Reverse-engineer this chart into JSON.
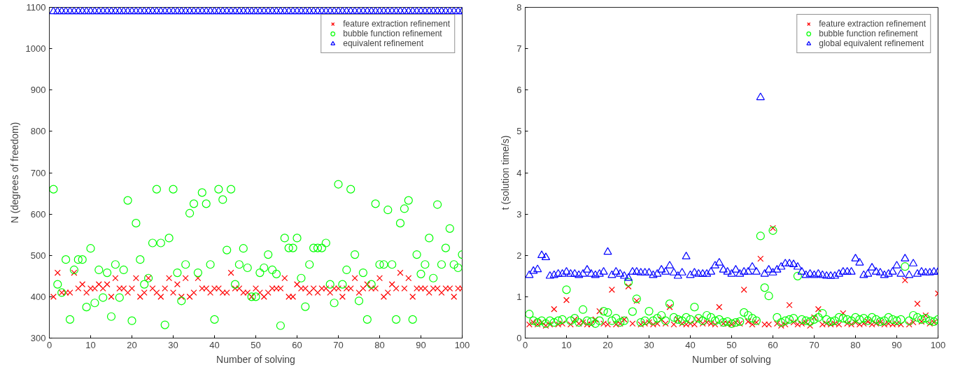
{
  "chart_data": [
    {
      "type": "scatter",
      "xlabel": "Number of solving",
      "ylabel": "N (degrees of freedom)",
      "xlim": [
        0,
        100
      ],
      "xticks": [
        0,
        10,
        20,
        30,
        40,
        50,
        60,
        70,
        80,
        90,
        100
      ],
      "ylim": [
        300,
        1100
      ],
      "yticks": [
        300,
        400,
        500,
        600,
        700,
        800,
        900,
        1000,
        1100
      ],
      "legend": "top right",
      "x": [
        1,
        2,
        3,
        4,
        5,
        6,
        7,
        8,
        9,
        10,
        11,
        12,
        13,
        14,
        15,
        16,
        17,
        18,
        19,
        20,
        21,
        22,
        23,
        24,
        25,
        26,
        27,
        28,
        29,
        30,
        31,
        32,
        33,
        34,
        35,
        36,
        37,
        38,
        39,
        40,
        41,
        42,
        43,
        44,
        45,
        46,
        47,
        48,
        49,
        50,
        51,
        52,
        53,
        54,
        55,
        56,
        57,
        58,
        59,
        60,
        61,
        62,
        63,
        64,
        65,
        66,
        67,
        68,
        69,
        70,
        71,
        72,
        73,
        74,
        75,
        76,
        77,
        78,
        79,
        80,
        81,
        82,
        83,
        84,
        85,
        86,
        87,
        88,
        89,
        90,
        91,
        92,
        93,
        94,
        95,
        96,
        97,
        98,
        99,
        100
      ],
      "series": [
        {
          "name": "feature extraction refinement",
          "color": "#ff0000",
          "marker": "cross",
          "values": [
            400,
            458,
            410,
            410,
            410,
            458,
            420,
            430,
            410,
            420,
            420,
            430,
            420,
            430,
            400,
            445,
            420,
            420,
            410,
            420,
            445,
            400,
            410,
            445,
            420,
            410,
            400,
            420,
            445,
            410,
            430,
            400,
            445,
            400,
            410,
            445,
            420,
            420,
            410,
            420,
            420,
            410,
            410,
            458,
            420,
            420,
            410,
            410,
            400,
            420,
            410,
            400,
            410,
            420,
            420,
            420,
            445,
            400,
            400,
            430,
            420,
            420,
            410,
            420,
            410,
            420,
            420,
            410,
            420,
            420,
            400,
            420,
            420,
            445,
            410,
            420,
            430,
            420,
            420,
            445,
            400,
            410,
            430,
            420,
            458,
            420,
            445,
            400,
            420,
            420,
            420,
            410,
            420,
            420,
            410,
            420,
            420,
            400,
            420,
            420
          ]
        },
        {
          "name": "bubble function refinement",
          "color": "#00ff00",
          "marker": "circle",
          "values": [
            660,
            430,
            410,
            490,
            345,
            465,
            490,
            490,
            375,
            517,
            385,
            465,
            398,
            458,
            352,
            478,
            398,
            465,
            633,
            342,
            578,
            490,
            430,
            445,
            530,
            660,
            530,
            332,
            542,
            660,
            458,
            390,
            478,
            602,
            625,
            458,
            652,
            625,
            478,
            345,
            660,
            635,
            513,
            660,
            430,
            478,
            517,
            470,
            400,
            400,
            458,
            470,
            502,
            465,
            455,
            330,
            542,
            518,
            518,
            542,
            445,
            376,
            478,
            518,
            518,
            518,
            530,
            430,
            385,
            672,
            430,
            465,
            660,
            502,
            390,
            458,
            345,
            430,
            625,
            478,
            478,
            610,
            478,
            345,
            578,
            613,
            633,
            345,
            502,
            455,
            478,
            542,
            445,
            623,
            478,
            518,
            565,
            478,
            470,
            502
          ]
        },
        {
          "name": "equivalent refinement",
          "color": "#0000ff",
          "marker": "triangle",
          "values": [
            1090,
            1090,
            1090,
            1090,
            1090,
            1090,
            1090,
            1090,
            1090,
            1090,
            1090,
            1090,
            1090,
            1090,
            1090,
            1090,
            1090,
            1090,
            1090,
            1090,
            1090,
            1090,
            1090,
            1090,
            1090,
            1090,
            1090,
            1090,
            1090,
            1090,
            1090,
            1090,
            1090,
            1090,
            1090,
            1090,
            1090,
            1090,
            1090,
            1090,
            1090,
            1090,
            1090,
            1090,
            1090,
            1090,
            1090,
            1090,
            1090,
            1090,
            1090,
            1090,
            1090,
            1090,
            1090,
            1090,
            1090,
            1090,
            1090,
            1090,
            1090,
            1090,
            1090,
            1090,
            1090,
            1090,
            1090,
            1090,
            1090,
            1090,
            1090,
            1090,
            1090,
            1090,
            1090,
            1090,
            1090,
            1090,
            1090,
            1090,
            1090,
            1090,
            1090,
            1090,
            1090,
            1090,
            1090,
            1090,
            1090,
            1090,
            1090,
            1090,
            1090,
            1090,
            1090,
            1090,
            1090,
            1090,
            1090,
            1090
          ]
        }
      ]
    },
    {
      "type": "scatter",
      "xlabel": "Number of solving",
      "ylabel": "t (solution time/s)",
      "xlim": [
        0,
        100
      ],
      "xticks": [
        0,
        10,
        20,
        30,
        40,
        50,
        60,
        70,
        80,
        90,
        100
      ],
      "ylim": [
        0,
        8
      ],
      "yticks": [
        0,
        1,
        2,
        3,
        4,
        5,
        6,
        7,
        8
      ],
      "legend": "top right",
      "x": [
        1,
        2,
        3,
        4,
        5,
        6,
        7,
        8,
        9,
        10,
        11,
        12,
        13,
        14,
        15,
        16,
        17,
        18,
        19,
        20,
        21,
        22,
        23,
        24,
        25,
        26,
        27,
        28,
        29,
        30,
        31,
        32,
        33,
        34,
        35,
        36,
        37,
        38,
        39,
        40,
        41,
        42,
        43,
        44,
        45,
        46,
        47,
        48,
        49,
        50,
        51,
        52,
        53,
        54,
        55,
        56,
        57,
        58,
        59,
        60,
        61,
        62,
        63,
        64,
        65,
        66,
        67,
        68,
        69,
        70,
        71,
        72,
        73,
        74,
        75,
        76,
        77,
        78,
        79,
        80,
        81,
        82,
        83,
        84,
        85,
        86,
        87,
        88,
        89,
        90,
        91,
        92,
        93,
        94,
        95,
        96,
        97,
        98,
        99,
        100
      ],
      "series": [
        {
          "name": "feature extraction refinement",
          "color": "#ff0000",
          "marker": "cross",
          "values": [
            0.33,
            0.38,
            0.33,
            0.38,
            0.3,
            0.33,
            0.7,
            0.33,
            0.35,
            0.92,
            0.33,
            0.45,
            0.35,
            0.38,
            0.33,
            0.33,
            0.45,
            0.65,
            0.35,
            0.33,
            1.17,
            0.33,
            0.35,
            0.45,
            1.25,
            0.35,
            0.9,
            0.33,
            0.35,
            0.38,
            0.33,
            0.35,
            0.45,
            0.35,
            0.75,
            0.33,
            0.45,
            0.35,
            0.33,
            0.35,
            0.33,
            0.45,
            0.35,
            0.38,
            0.35,
            0.33,
            0.75,
            0.35,
            0.35,
            0.33,
            0.38,
            0.35,
            1.17,
            0.4,
            0.33,
            0.38,
            1.92,
            0.33,
            0.33,
            2.66,
            0.35,
            0.3,
            0.33,
            0.8,
            0.38,
            0.33,
            0.35,
            0.38,
            0.3,
            0.5,
            0.7,
            0.33,
            0.35,
            0.33,
            0.35,
            0.33,
            0.6,
            0.35,
            0.33,
            0.38,
            0.33,
            0.35,
            0.4,
            0.33,
            0.35,
            0.38,
            0.33,
            0.35,
            0.33,
            0.35,
            0.33,
            1.4,
            0.33,
            0.38,
            0.83,
            0.4,
            0.55,
            0.35,
            0.38,
            1.08
          ]
        },
        {
          "name": "bubble function refinement",
          "color": "#00ff00",
          "marker": "circle",
          "values": [
            0.58,
            0.42,
            0.38,
            0.42,
            0.35,
            0.42,
            0.38,
            0.42,
            0.45,
            1.17,
            0.42,
            0.48,
            0.38,
            0.69,
            0.42,
            0.4,
            0.35,
            0.42,
            0.65,
            0.62,
            0.42,
            0.48,
            0.38,
            0.42,
            1.35,
            0.64,
            0.95,
            0.38,
            0.42,
            0.65,
            0.42,
            0.48,
            0.55,
            0.42,
            0.83,
            0.5,
            0.45,
            0.42,
            0.5,
            0.45,
            0.75,
            0.48,
            0.42,
            0.55,
            0.5,
            0.42,
            0.45,
            0.38,
            0.4,
            0.35,
            0.38,
            0.4,
            0.62,
            0.55,
            0.48,
            0.42,
            2.47,
            1.22,
            1.02,
            2.6,
            0.5,
            0.38,
            0.42,
            0.45,
            0.48,
            1.5,
            0.45,
            0.42,
            0.4,
            0.45,
            0.5,
            0.6,
            0.45,
            0.4,
            0.42,
            0.5,
            0.48,
            0.45,
            0.42,
            0.5,
            0.45,
            0.48,
            0.42,
            0.5,
            0.45,
            0.4,
            0.42,
            0.5,
            0.45,
            0.42,
            0.45,
            1.73,
            0.42,
            0.55,
            0.5,
            0.45,
            0.48,
            0.42,
            0.4,
            0.45
          ]
        },
        {
          "name": "global equivalent refinement",
          "color": "#0000ff",
          "marker": "triangle",
          "values": [
            1.52,
            1.62,
            1.66,
            2.0,
            1.95,
            1.5,
            1.52,
            1.55,
            1.55,
            1.6,
            1.55,
            1.55,
            1.52,
            1.55,
            1.65,
            1.55,
            1.52,
            1.55,
            1.6,
            2.08,
            1.52,
            1.6,
            1.55,
            1.5,
            1.45,
            1.6,
            1.6,
            1.58,
            1.58,
            1.58,
            1.52,
            1.55,
            1.65,
            1.6,
            1.75,
            1.58,
            1.5,
            1.58,
            1.97,
            1.52,
            1.58,
            1.55,
            1.55,
            1.55,
            1.6,
            1.75,
            1.82,
            1.65,
            1.6,
            1.55,
            1.65,
            1.55,
            1.6,
            1.6,
            1.72,
            1.6,
            5.82,
            1.55,
            1.65,
            1.58,
            1.65,
            1.72,
            1.8,
            1.8,
            1.78,
            1.72,
            1.6,
            1.52,
            1.55,
            1.52,
            1.55,
            1.52,
            1.5,
            1.5,
            1.5,
            1.55,
            1.6,
            1.6,
            1.6,
            1.92,
            1.82,
            1.52,
            1.55,
            1.7,
            1.6,
            1.58,
            1.52,
            1.55,
            1.6,
            1.75,
            1.55,
            1.92,
            1.52,
            1.8,
            1.55,
            1.6,
            1.58,
            1.58,
            1.6,
            1.6
          ]
        }
      ]
    }
  ]
}
